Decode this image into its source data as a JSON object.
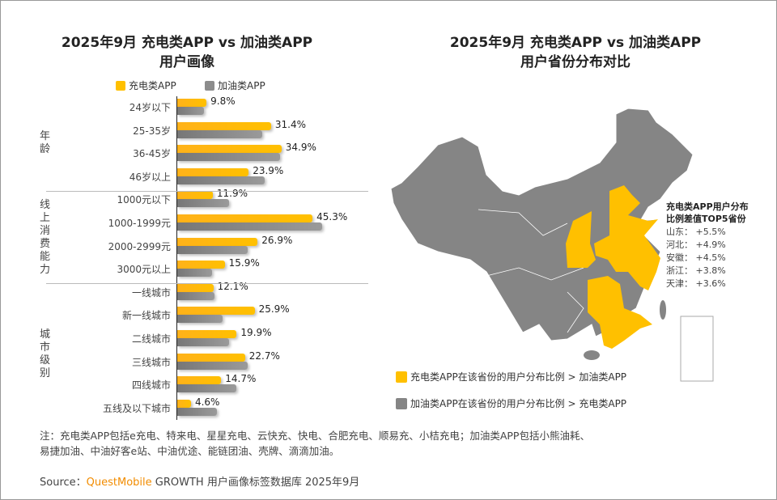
{
  "left": {
    "title_line1": "2025年9月 充电类APP vs 加油类APP",
    "title_line2": "用户画像"
  },
  "right": {
    "title_line1": "2025年9月 充电类APP vs 加油类APP",
    "title_line2": "用户省份分布对比"
  },
  "chart_data": [
    {
      "type": "bar",
      "orientation": "horizontal",
      "legend_position": "top",
      "groups": [
        {
          "label": "年龄",
          "count": 4
        },
        {
          "label": "线上消费能力",
          "count": 4
        },
        {
          "label": "城市级别",
          "count": 6
        }
      ],
      "categories": [
        "24岁以下",
        "25-35岁",
        "36-45岁",
        "46岁以上",
        "1000元以下",
        "1000-1999元",
        "2000-2999元",
        "3000元以上",
        "一线城市",
        "新一线城市",
        "二线城市",
        "三线城市",
        "四线城市",
        "五线及以下城市"
      ],
      "series": [
        {
          "name": "充电类APP",
          "color": "#FFC000",
          "values": [
            9.8,
            31.4,
            34.9,
            23.9,
            11.9,
            45.3,
            26.9,
            15.9,
            12.1,
            25.9,
            19.9,
            22.7,
            14.7,
            4.6
          ],
          "labels": [
            "9.8%",
            "31.4%",
            "34.9%",
            "23.9%",
            "11.9%",
            "45.3%",
            "26.9%",
            "15.9%",
            "12.1%",
            "25.9%",
            "19.9%",
            "22.7%",
            "14.7%",
            "4.6%"
          ]
        },
        {
          "name": "加油类APP",
          "color": "#8C8C8C",
          "values": [
            9.0,
            28.4,
            34.5,
            29.3,
            17.4,
            48.6,
            23.5,
            11.7,
            12.6,
            15.3,
            17.4,
            23.6,
            19.9,
            13.4
          ]
        }
      ]
    },
    {
      "type": "map",
      "highlight_color": "#FFC000",
      "base_color": "#858585",
      "legend": [
        "充电类APP在该省份的用户分布比例 > 加油类APP",
        "加油类APP在该省份的用户分布比例 > 充电类APP"
      ],
      "top5_title_line1": "充电类APP用户分布",
      "top5_title_line2": "比例差值TOP5省份",
      "top5": [
        {
          "province": "山东",
          "value": "+5.5%"
        },
        {
          "province": "河北",
          "value": "+4.9%"
        },
        {
          "province": "安徽",
          "value": "+4.5%"
        },
        {
          "province": "浙江",
          "value": "+3.8%"
        },
        {
          "province": "天津",
          "value": "+3.6%"
        }
      ]
    }
  ],
  "footer": {
    "note_line1": "注：充电类APP包括e充电、特来电、星星充电、云快充、快电、合肥充电、顺易充、小桔充电；加油类APP包括小熊油耗、",
    "note_line2": "易捷加油、中油好客e站、中油优途、能链团油、壳牌、滴滴加油。",
    "source_prefix": "Source：",
    "source_brand": "QuestMobile",
    "source_rest": " GROWTH 用户画像标签数据库 2025年9月"
  }
}
